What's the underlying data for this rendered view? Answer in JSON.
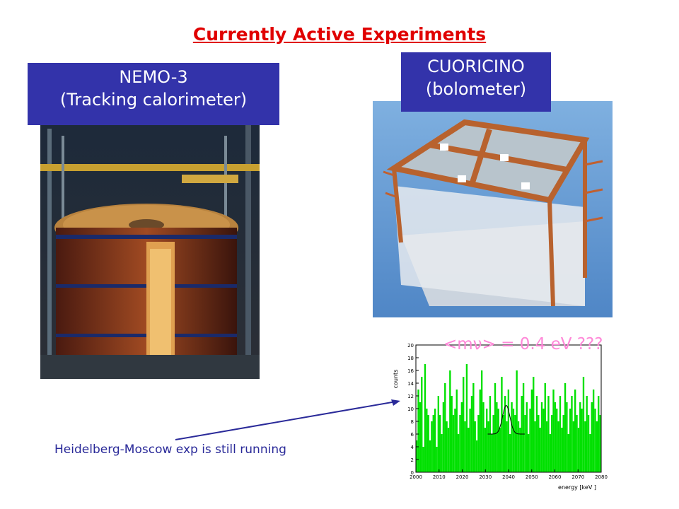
{
  "title": "Currently Active Experiments",
  "nemo": {
    "line1": "NEMO-3",
    "line2": "(Tracking calorimeter)"
  },
  "cuoricino": {
    "line1": "CUORICINO",
    "line2": "(bolometer)"
  },
  "mass_label": "<mν> = 0.4 eV ???",
  "annotation": "Heidelberg-Moscow exp is still running",
  "chart_data": {
    "type": "bar",
    "xlabel": "energy  [keV ]",
    "ylabel": "counts",
    "xlim": [
      2000,
      2080
    ],
    "ylim": [
      0,
      20
    ],
    "x_ticks": [
      2000,
      2010,
      2020,
      2030,
      2040,
      2050,
      2060,
      2070,
      2080
    ],
    "y_ticks": [
      0,
      2,
      4,
      6,
      8,
      10,
      12,
      14,
      16,
      18,
      20
    ],
    "bin_width_keV": 0.72,
    "values": [
      5,
      13,
      11,
      15,
      4,
      17,
      10,
      9,
      5,
      8,
      9,
      10,
      4,
      12,
      9,
      6,
      11,
      14,
      8,
      7,
      16,
      12,
      9,
      10,
      13,
      6,
      9,
      11,
      15,
      8,
      17,
      7,
      10,
      12,
      14,
      8,
      5,
      9,
      13,
      16,
      11,
      7,
      10,
      8,
      12,
      6,
      9,
      14,
      11,
      10,
      7,
      15,
      9,
      12,
      8,
      13,
      6,
      11,
      10,
      9,
      16,
      8,
      7,
      12,
      14,
      9,
      11,
      6,
      10,
      13,
      15,
      8,
      12,
      9,
      7,
      11,
      10,
      14,
      8,
      12,
      6,
      9,
      13,
      11,
      10,
      8,
      12,
      7,
      9,
      14,
      11,
      6,
      10,
      12,
      8,
      13,
      9,
      7,
      11,
      10,
      15,
      8,
      12,
      9,
      6,
      11,
      13,
      10,
      8,
      12,
      9,
      14,
      7,
      11,
      10,
      9
    ],
    "peak": {
      "center_keV": 2039,
      "label": "fit line"
    },
    "fill": "#00e000"
  }
}
